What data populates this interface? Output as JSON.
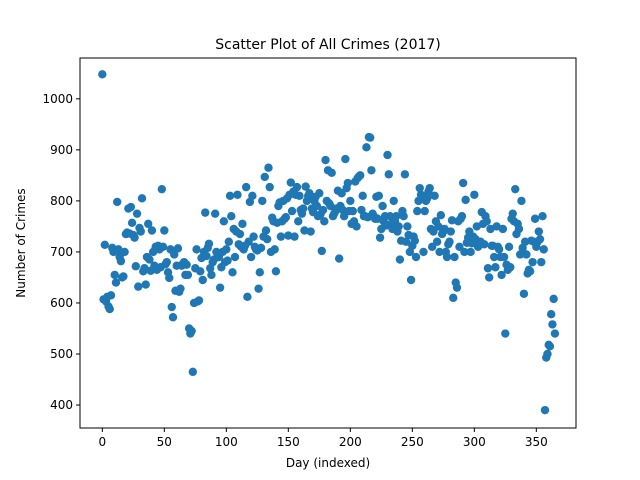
{
  "chart_data": {
    "type": "scatter",
    "title": "Scatter Plot of All Crimes (2017)",
    "xlabel": "Day (indexed)",
    "ylabel": "Number of Crimes",
    "xlim": [
      -18,
      382
    ],
    "ylim": [
      355,
      1080
    ],
    "xticks": [
      0,
      50,
      100,
      150,
      200,
      250,
      300,
      350
    ],
    "yticks": [
      400,
      500,
      600,
      700,
      800,
      900,
      1000
    ],
    "grid": false,
    "legend": "none",
    "marker_color": "#1f77b4",
    "points": [
      [
        0,
        1048
      ],
      [
        1,
        607
      ],
      [
        2,
        714
      ],
      [
        3,
        603
      ],
      [
        4,
        612
      ],
      [
        5,
        593
      ],
      [
        6,
        588
      ],
      [
        7,
        615
      ],
      [
        8,
        708
      ],
      [
        9,
        700
      ],
      [
        10,
        655
      ],
      [
        11,
        640
      ],
      [
        12,
        798
      ],
      [
        13,
        705
      ],
      [
        14,
        690
      ],
      [
        15,
        682
      ],
      [
        16,
        650
      ],
      [
        17,
        652
      ],
      [
        18,
        700
      ],
      [
        19,
        735
      ],
      [
        20,
        738
      ],
      [
        21,
        785
      ],
      [
        22,
        736
      ],
      [
        23,
        788
      ],
      [
        24,
        757
      ],
      [
        25,
        733
      ],
      [
        26,
        728
      ],
      [
        27,
        672
      ],
      [
        28,
        775
      ],
      [
        29,
        632
      ],
      [
        30,
        747
      ],
      [
        31,
        740
      ],
      [
        32,
        805
      ],
      [
        33,
        662
      ],
      [
        34,
        668
      ],
      [
        35,
        636
      ],
      [
        36,
        690
      ],
      [
        37,
        755
      ],
      [
        38,
        685
      ],
      [
        39,
        663
      ],
      [
        40,
        742
      ],
      [
        41,
        700
      ],
      [
        42,
        673
      ],
      [
        43,
        710
      ],
      [
        44,
        665
      ],
      [
        45,
        712
      ],
      [
        46,
        705
      ],
      [
        47,
        670
      ],
      [
        48,
        823
      ],
      [
        49,
        710
      ],
      [
        50,
        742
      ],
      [
        51,
        676
      ],
      [
        52,
        680
      ],
      [
        53,
        660
      ],
      [
        54,
        649
      ],
      [
        55,
        705
      ],
      [
        56,
        592
      ],
      [
        57,
        572
      ],
      [
        58,
        695
      ],
      [
        59,
        624
      ],
      [
        60,
        673
      ],
      [
        61,
        707
      ],
      [
        62,
        622
      ],
      [
        63,
        628
      ],
      [
        64,
        673
      ],
      [
        65,
        677
      ],
      [
        66,
        680
      ],
      [
        67,
        655
      ],
      [
        68,
        675
      ],
      [
        69,
        655
      ],
      [
        70,
        550
      ],
      [
        71,
        540
      ],
      [
        72,
        545
      ],
      [
        73,
        465
      ],
      [
        74,
        600
      ],
      [
        75,
        668
      ],
      [
        76,
        705
      ],
      [
        77,
        603
      ],
      [
        78,
        605
      ],
      [
        79,
        662
      ],
      [
        80,
        688
      ],
      [
        81,
        645
      ],
      [
        82,
        700
      ],
      [
        83,
        777
      ],
      [
        84,
        692
      ],
      [
        85,
        708
      ],
      [
        86,
        716
      ],
      [
        87,
        668
      ],
      [
        88,
        655
      ],
      [
        89,
        680
      ],
      [
        90,
        685
      ],
      [
        91,
        775
      ],
      [
        92,
        700
      ],
      [
        93,
        690
      ],
      [
        94,
        690
      ],
      [
        95,
        630
      ],
      [
        96,
        670
      ],
      [
        97,
        700
      ],
      [
        98,
        760
      ],
      [
        99,
        680
      ],
      [
        100,
        705
      ],
      [
        101,
        683
      ],
      [
        102,
        720
      ],
      [
        103,
        810
      ],
      [
        104,
        770
      ],
      [
        105,
        660
      ],
      [
        106,
        745
      ],
      [
        107,
        690
      ],
      [
        108,
        740
      ],
      [
        109,
        812
      ],
      [
        110,
        715
      ],
      [
        111,
        735
      ],
      [
        112,
        710
      ],
      [
        113,
        755
      ],
      [
        114,
        705
      ],
      [
        115,
        712
      ],
      [
        116,
        827
      ],
      [
        117,
        612
      ],
      [
        118,
        720
      ],
      [
        119,
        798
      ],
      [
        120,
        690
      ],
      [
        121,
        810
      ],
      [
        122,
        730
      ],
      [
        123,
        710
      ],
      [
        124,
        705
      ],
      [
        125,
        703
      ],
      [
        126,
        628
      ],
      [
        127,
        660
      ],
      [
        128,
        708
      ],
      [
        129,
        800
      ],
      [
        130,
        730
      ],
      [
        131,
        847
      ],
      [
        132,
        742
      ],
      [
        133,
        725
      ],
      [
        134,
        865
      ],
      [
        135,
        827
      ],
      [
        136,
        700
      ],
      [
        137,
        767
      ],
      [
        138,
        760
      ],
      [
        139,
        705
      ],
      [
        140,
        662
      ],
      [
        141,
        757
      ],
      [
        142,
        790
      ],
      [
        143,
        797
      ],
      [
        144,
        730
      ],
      [
        145,
        760
      ],
      [
        146,
        800
      ],
      [
        147,
        765
      ],
      [
        148,
        768
      ],
      [
        149,
        805
      ],
      [
        150,
        732
      ],
      [
        151,
        812
      ],
      [
        152,
        836
      ],
      [
        153,
        780
      ],
      [
        154,
        818
      ],
      [
        155,
        730
      ],
      [
        156,
        812
      ],
      [
        157,
        827
      ],
      [
        158,
        760
      ],
      [
        159,
        810
      ],
      [
        160,
        782
      ],
      [
        161,
        775
      ],
      [
        162,
        785
      ],
      [
        163,
        742
      ],
      [
        164,
        828
      ],
      [
        165,
        800
      ],
      [
        166,
        810
      ],
      [
        167,
        815
      ],
      [
        168,
        740
      ],
      [
        169,
        785
      ],
      [
        170,
        778
      ],
      [
        171,
        800
      ],
      [
        172,
        808
      ],
      [
        173,
        790
      ],
      [
        174,
        770
      ],
      [
        175,
        815
      ],
      [
        176,
        774
      ],
      [
        177,
        702
      ],
      [
        178,
        782
      ],
      [
        179,
        760
      ],
      [
        180,
        880
      ],
      [
        181,
        800
      ],
      [
        182,
        860
      ],
      [
        183,
        795
      ],
      [
        184,
        790
      ],
      [
        185,
        855
      ],
      [
        186,
        770
      ],
      [
        187,
        775
      ],
      [
        188,
        780
      ],
      [
        189,
        785
      ],
      [
        190,
        820
      ],
      [
        191,
        687
      ],
      [
        192,
        790
      ],
      [
        193,
        815
      ],
      [
        194,
        782
      ],
      [
        195,
        770
      ],
      [
        196,
        882
      ],
      [
        197,
        825
      ],
      [
        198,
        835
      ],
      [
        199,
        780
      ],
      [
        200,
        800
      ],
      [
        201,
        755
      ],
      [
        202,
        780
      ],
      [
        203,
        760
      ],
      [
        204,
        838
      ],
      [
        205,
        750
      ],
      [
        206,
        845
      ],
      [
        207,
        848
      ],
      [
        208,
        850
      ],
      [
        209,
        782
      ],
      [
        210,
        810
      ],
      [
        211,
        770
      ],
      [
        212,
        770
      ],
      [
        213,
        905
      ],
      [
        214,
        768
      ],
      [
        215,
        925
      ],
      [
        216,
        924
      ],
      [
        217,
        860
      ],
      [
        218,
        775
      ],
      [
        219,
        770
      ],
      [
        220,
        765
      ],
      [
        221,
        808
      ],
      [
        222,
        765
      ],
      [
        223,
        810
      ],
      [
        224,
        728
      ],
      [
        225,
        745
      ],
      [
        226,
        790
      ],
      [
        227,
        760
      ],
      [
        228,
        770
      ],
      [
        229,
        752
      ],
      [
        230,
        890
      ],
      [
        231,
        852
      ],
      [
        232,
        770
      ],
      [
        233,
        755
      ],
      [
        234,
        745
      ],
      [
        235,
        800
      ],
      [
        236,
        760
      ],
      [
        237,
        770
      ],
      [
        238,
        740
      ],
      [
        239,
        750
      ],
      [
        240,
        685
      ],
      [
        241,
        722
      ],
      [
        242,
        780
      ],
      [
        243,
        770
      ],
      [
        244,
        852
      ],
      [
        245,
        720
      ],
      [
        246,
        750
      ],
      [
        247,
        733
      ],
      [
        248,
        700
      ],
      [
        249,
        645
      ],
      [
        250,
        712
      ],
      [
        251,
        730
      ],
      [
        252,
        722
      ],
      [
        253,
        690
      ],
      [
        254,
        780
      ],
      [
        255,
        800
      ],
      [
        256,
        825
      ],
      [
        257,
        812
      ],
      [
        258,
        810
      ],
      [
        259,
        700
      ],
      [
        260,
        780
      ],
      [
        261,
        800
      ],
      [
        262,
        805
      ],
      [
        263,
        818
      ],
      [
        264,
        825
      ],
      [
        265,
        745
      ],
      [
        266,
        710
      ],
      [
        267,
        740
      ],
      [
        268,
        810
      ],
      [
        269,
        760
      ],
      [
        270,
        720
      ],
      [
        271,
        750
      ],
      [
        272,
        700
      ],
      [
        273,
        772
      ],
      [
        274,
        735
      ],
      [
        275,
        740
      ],
      [
        276,
        745
      ],
      [
        277,
        700
      ],
      [
        278,
        690
      ],
      [
        279,
        715
      ],
      [
        280,
        720
      ],
      [
        281,
        740
      ],
      [
        282,
        762
      ],
      [
        283,
        610
      ],
      [
        284,
        690
      ],
      [
        285,
        640
      ],
      [
        286,
        630
      ],
      [
        287,
        760
      ],
      [
        288,
        710
      ],
      [
        289,
        765
      ],
      [
        290,
        770
      ],
      [
        291,
        835
      ],
      [
        292,
        700
      ],
      [
        293,
        802
      ],
      [
        294,
        718
      ],
      [
        295,
        728
      ],
      [
        296,
        740
      ],
      [
        297,
        700
      ],
      [
        298,
        717
      ],
      [
        299,
        730
      ],
      [
        300,
        812
      ],
      [
        301,
        725
      ],
      [
        302,
        750
      ],
      [
        303,
        710
      ],
      [
        304,
        715
      ],
      [
        305,
        720
      ],
      [
        306,
        778
      ],
      [
        307,
        755
      ],
      [
        308,
        715
      ],
      [
        309,
        770
      ],
      [
        310,
        760
      ],
      [
        311,
        668
      ],
      [
        312,
        650
      ],
      [
        313,
        745
      ],
      [
        314,
        712
      ],
      [
        315,
        712
      ],
      [
        316,
        690
      ],
      [
        317,
        670
      ],
      [
        318,
        750
      ],
      [
        319,
        710
      ],
      [
        320,
        705
      ],
      [
        321,
        690
      ],
      [
        322,
        655
      ],
      [
        323,
        745
      ],
      [
        324,
        690
      ],
      [
        325,
        540
      ],
      [
        326,
        675
      ],
      [
        327,
        665
      ],
      [
        328,
        710
      ],
      [
        329,
        670
      ],
      [
        330,
        765
      ],
      [
        331,
        775
      ],
      [
        332,
        760
      ],
      [
        333,
        823
      ],
      [
        334,
        735
      ],
      [
        335,
        755
      ],
      [
        336,
        745
      ],
      [
        337,
        695
      ],
      [
        338,
        800
      ],
      [
        339,
        708
      ],
      [
        340,
        618
      ],
      [
        341,
        720
      ],
      [
        342,
        695
      ],
      [
        343,
        658
      ],
      [
        344,
        665
      ],
      [
        345,
        662
      ],
      [
        346,
        722
      ],
      [
        347,
        680
      ],
      [
        348,
        720
      ],
      [
        349,
        765
      ],
      [
        350,
        710
      ],
      [
        351,
        720
      ],
      [
        352,
        740
      ],
      [
        353,
        725
      ],
      [
        354,
        680
      ],
      [
        355,
        770
      ],
      [
        356,
        705
      ],
      [
        357,
        390
      ],
      [
        358,
        493
      ],
      [
        359,
        500
      ],
      [
        360,
        518
      ],
      [
        361,
        515
      ],
      [
        362,
        578
      ],
      [
        363,
        558
      ],
      [
        364,
        608
      ],
      [
        365,
        540
      ]
    ]
  }
}
